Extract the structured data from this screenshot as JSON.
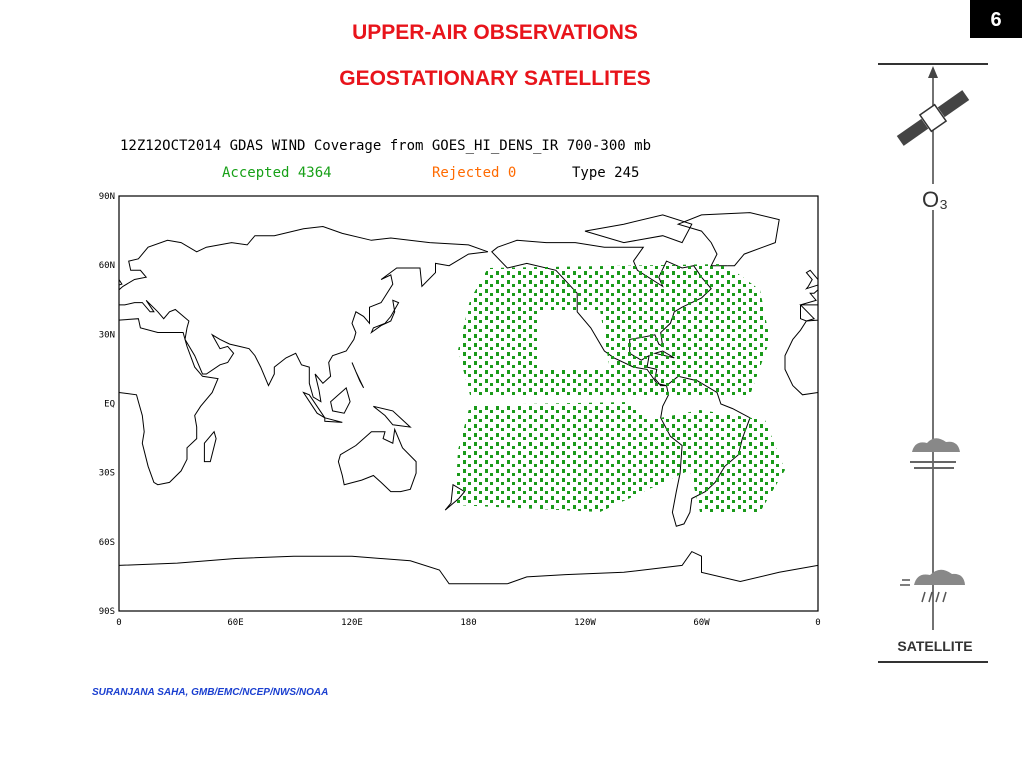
{
  "slide": {
    "number": "6",
    "title": "UPPER-AIR OBSERVATIONS",
    "subtitle": "GEOSTATIONARY SATELLITES",
    "credit": "SURANJANA SAHA, GMB/EMC/NCEP/NWS/NOAA"
  },
  "map": {
    "header": "12Z12OCT2014 GDAS WIND Coverage from GOES_HI_DENS_IR 700-300 mb",
    "accepted": "Accepted 4364",
    "rejected": "Rejected 0",
    "type_label": "Type 245",
    "xticks": [
      0,
      {
        "value": 60,
        "label": "60E"
      },
      {
        "value": 120,
        "label": "120E"
      },
      180,
      {
        "value": 240,
        "label": "120W"
      },
      {
        "value": 300,
        "label": "60W"
      },
      {
        "value": 360,
        "label": "0"
      }
    ],
    "yticks": [
      {
        "value": 90,
        "label": "90N"
      },
      {
        "value": 60,
        "label": "60N"
      },
      {
        "value": 30,
        "label": "30N"
      },
      {
        "value": 0,
        "label": "EQ"
      },
      {
        "value": -30,
        "label": "30S"
      },
      {
        "value": -60,
        "label": "60S"
      },
      {
        "value": -90,
        "label": "90S"
      }
    ],
    "xlim": [
      0,
      360
    ],
    "ylim": [
      -90,
      90
    ]
  },
  "panel": {
    "ozone": "O₃",
    "label": "SATELLITE"
  }
}
